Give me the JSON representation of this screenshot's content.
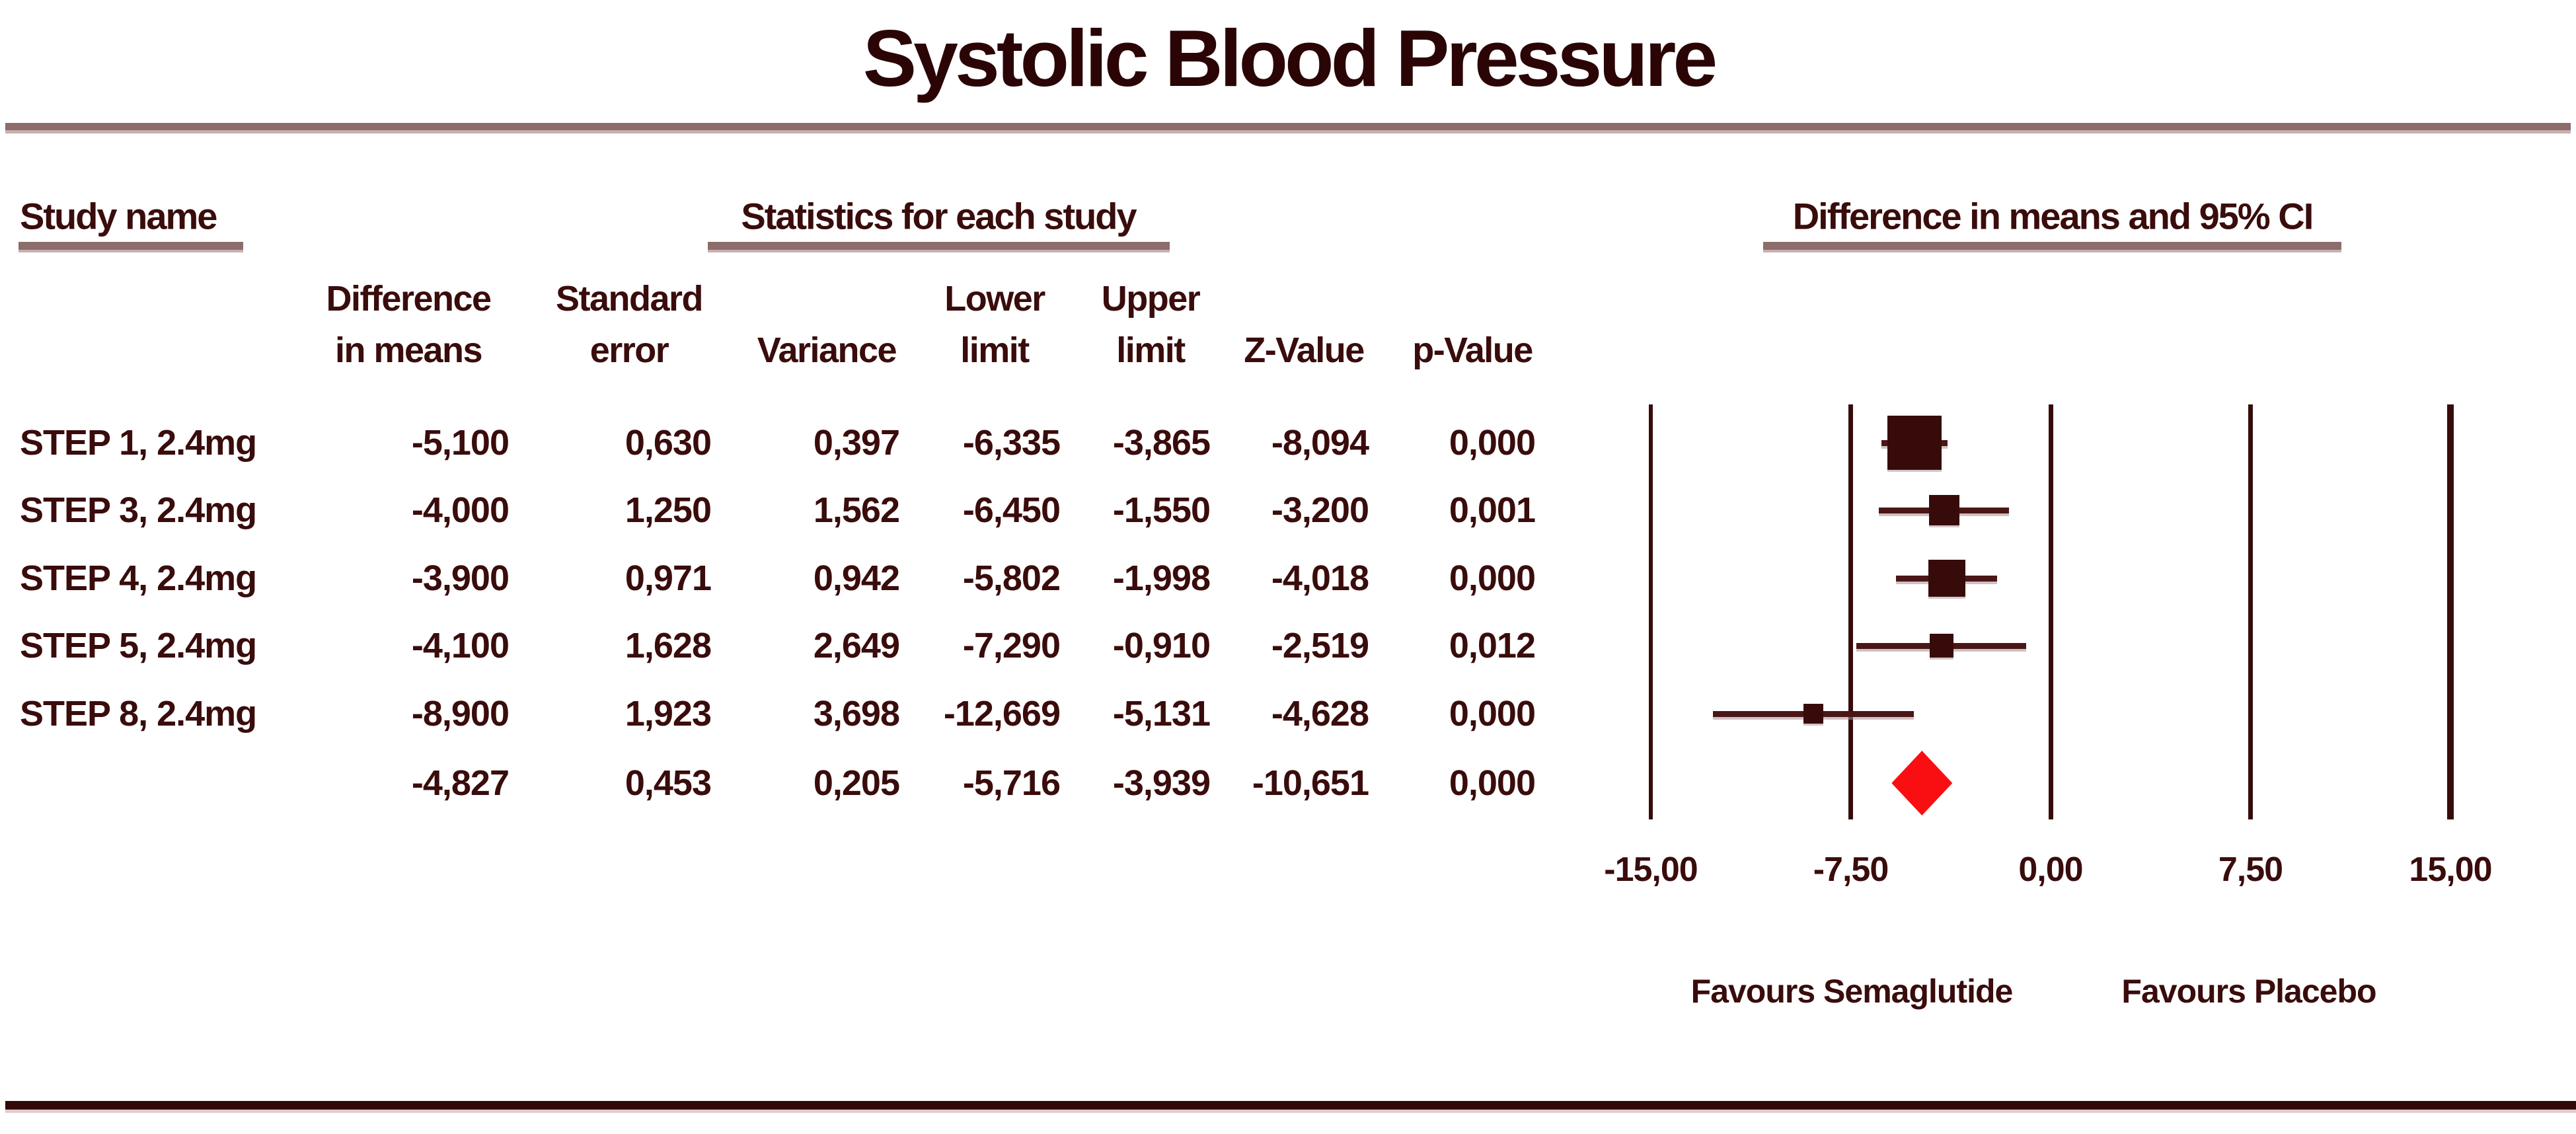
{
  "title": "Systolic Blood Pressure",
  "sections": {
    "study": "Study name",
    "stats": "Statistics for each study",
    "plot": "Difference in means and 95% CI"
  },
  "columns": [
    {
      "line1": "Difference",
      "line2": "in means"
    },
    {
      "line1": "Standard",
      "line2": "error"
    },
    {
      "line1": "",
      "line2": "Variance"
    },
    {
      "line1": "Lower",
      "line2": "limit"
    },
    {
      "line1": "Upper",
      "line2": "limit"
    },
    {
      "line1": "",
      "line2": "Z-Value"
    },
    {
      "line1": "",
      "line2": "p-Value"
    }
  ],
  "table": {
    "rows": [
      {
        "study": "STEP 1, 2.4mg",
        "cells": [
          "-5,100",
          "0,630",
          "0,397",
          "-6,335",
          "-3,865",
          "-8,094",
          "0,000"
        ]
      },
      {
        "study": "STEP 3, 2.4mg",
        "cells": [
          "-4,000",
          "1,250",
          "1,562",
          "-6,450",
          "-1,550",
          "-3,200",
          "0,001"
        ]
      },
      {
        "study": "STEP 4, 2.4mg",
        "cells": [
          "-3,900",
          "0,971",
          "0,942",
          "-5,802",
          "-1,998",
          "-4,018",
          "0,000"
        ]
      },
      {
        "study": "STEP 5, 2.4mg",
        "cells": [
          "-4,100",
          "1,628",
          "2,649",
          "-7,290",
          "-0,910",
          "-2,519",
          "0,012"
        ]
      },
      {
        "study": "STEP 8, 2.4mg",
        "cells": [
          "-8,900",
          "1,923",
          "3,698",
          "-12,669",
          "-5,131",
          "-4,628",
          "0,000"
        ]
      },
      {
        "study": "",
        "cells": [
          "-4,827",
          "0,453",
          "0,205",
          "-5,716",
          "-3,939",
          "-10,651",
          "0,000"
        ]
      }
    ]
  },
  "chart_data": {
    "type": "forest",
    "title": "Systolic Blood Pressure",
    "xlabel": "Difference in means and 95% CI",
    "xlim": [
      -15,
      15
    ],
    "ticks": [
      {
        "value": -15,
        "label": "-15,00"
      },
      {
        "value": -7.5,
        "label": "-7,50"
      },
      {
        "value": 0,
        "label": "0,00"
      },
      {
        "value": 7.5,
        "label": "7,50"
      },
      {
        "value": 15,
        "label": "15,00"
      }
    ],
    "studies": [
      {
        "name": "STEP 1, 2.4mg",
        "mean": -5.1,
        "lower": -6.335,
        "upper": -3.865,
        "se": 0.63
      },
      {
        "name": "STEP 3, 2.4mg",
        "mean": -4.0,
        "lower": -6.45,
        "upper": -1.55,
        "se": 1.25
      },
      {
        "name": "STEP 4, 2.4mg",
        "mean": -3.9,
        "lower": -5.802,
        "upper": -1.998,
        "se": 0.971
      },
      {
        "name": "STEP 5, 2.4mg",
        "mean": -4.1,
        "lower": -7.29,
        "upper": -0.91,
        "se": 1.628
      },
      {
        "name": "STEP 8, 2.4mg",
        "mean": -8.9,
        "lower": -12.669,
        "upper": -5.131,
        "se": 1.923
      }
    ],
    "overall": {
      "mean": -4.827,
      "lower": -5.716,
      "upper": -3.939,
      "se": 0.453
    },
    "favours_left": "Favours Semaglutide",
    "favours_right": "Favours Placebo",
    "marker_color": "#380B0B",
    "summary_color": "#F90F12"
  }
}
